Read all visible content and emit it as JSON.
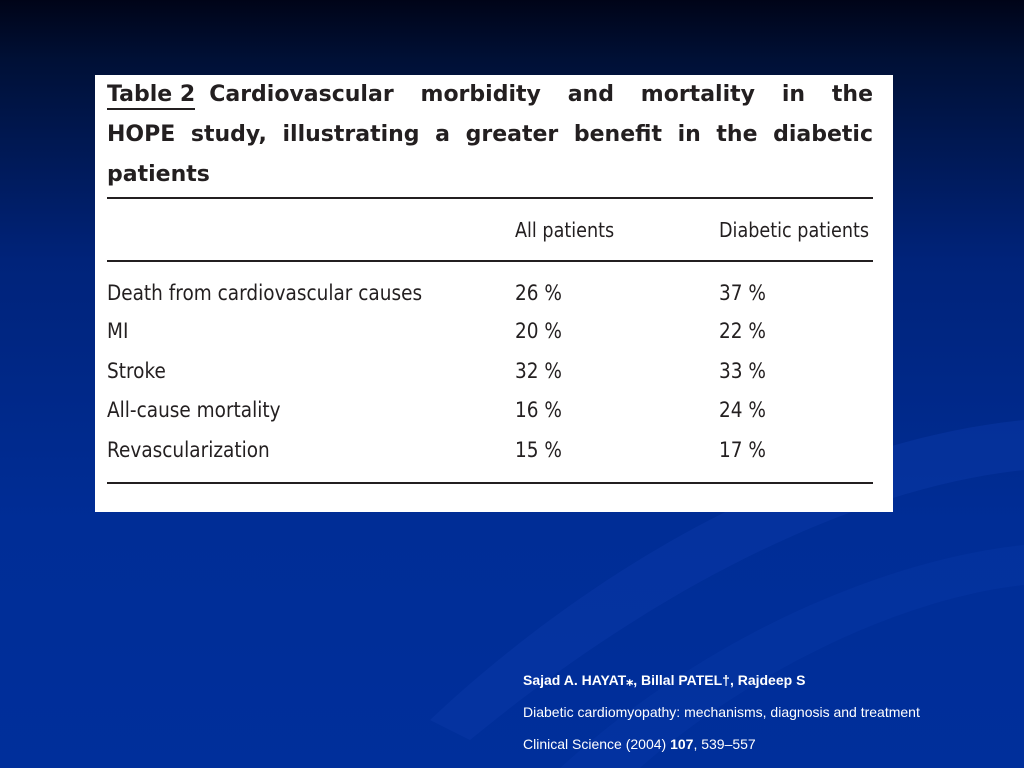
{
  "table": {
    "caption_label": "Table 2",
    "caption_text": "Cardiovascular morbidity and mortality in the HOPE study, illustrating a greater benefit in the diabetic patients",
    "columns": [
      "",
      "All patients",
      "Diabetic patients"
    ],
    "rows": [
      [
        "Death from cardiovascular causes",
        "26 %",
        "37 %"
      ],
      [
        "MI",
        "20 %",
        "22 %"
      ],
      [
        "Stroke",
        "32 %",
        "33 %"
      ],
      [
        "All-cause mortality",
        "16 %",
        "24 %"
      ],
      [
        "Revascularization",
        "15 %",
        "17 %"
      ]
    ]
  },
  "citation": {
    "authors": "Sajad A. HAYAT⁎, Billal PATEL†, Rajdeep S",
    "title": "Diabetic cardiomyopathy: mechanisms,  diagnosis and treatment",
    "journal": "Clinical Science (2004) ",
    "volume": "107",
    "pages": ", 539–557"
  },
  "colors": {
    "background_top": "#000418",
    "background_bottom": "#002f9b",
    "table_background": "#ffffff",
    "citation_text": "#ffffff"
  }
}
